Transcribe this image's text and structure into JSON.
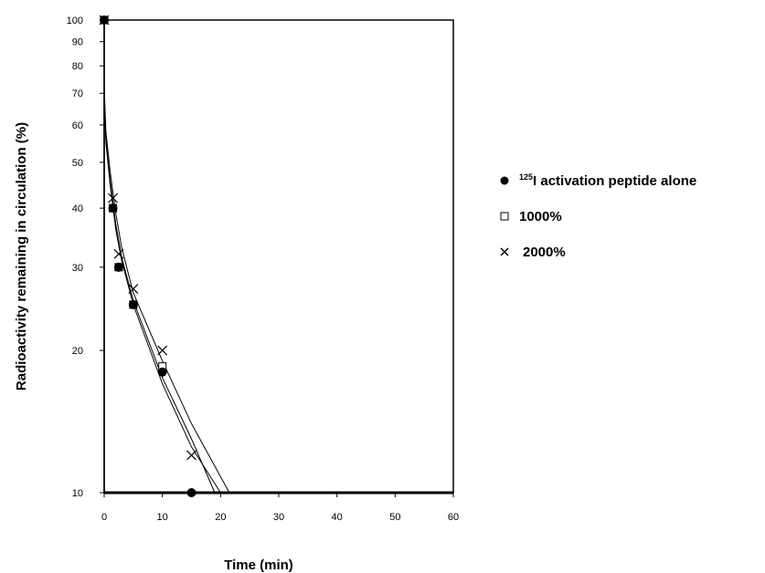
{
  "chart_data": {
    "type": "line",
    "title": "",
    "xlabel": "Time (min)",
    "ylabel": "Radioactivity remaining in circulation (%)",
    "xlim": [
      0,
      60
    ],
    "ylim": [
      10,
      100
    ],
    "y_scale": "log",
    "x_ticks": [
      0,
      10,
      20,
      30,
      40,
      50,
      60
    ],
    "y_ticks": [
      10,
      20,
      30,
      40,
      50,
      60,
      70,
      80,
      90,
      100
    ],
    "grid": false,
    "legend_position": "right",
    "series": [
      {
        "name_sup": "125",
        "name": "I activation peptide alone",
        "marker": "filled-circle",
        "points": [
          [
            0,
            100
          ],
          [
            1.5,
            40
          ],
          [
            2.5,
            30
          ],
          [
            5,
            25
          ],
          [
            10,
            18
          ],
          [
            15,
            10
          ]
        ],
        "fit_line": [
          [
            0,
            70
          ],
          [
            0.3,
            55
          ],
          [
            1,
            45
          ],
          [
            2,
            36
          ],
          [
            3,
            31
          ],
          [
            5,
            25
          ],
          [
            10,
            17
          ],
          [
            15,
            12.5
          ],
          [
            20,
            10
          ]
        ]
      },
      {
        "name": "1000%",
        "marker": "open-square",
        "points": [
          [
            0,
            100
          ],
          [
            1.5,
            40
          ],
          [
            2.5,
            30
          ],
          [
            5,
            25
          ],
          [
            10,
            18.5
          ]
        ],
        "fit_line": [
          [
            0,
            70
          ],
          [
            0.3,
            56
          ],
          [
            1,
            46
          ],
          [
            2,
            37
          ],
          [
            3,
            31.5
          ],
          [
            5,
            25.5
          ],
          [
            10,
            17.5
          ],
          [
            15,
            13
          ],
          [
            19,
            10
          ]
        ]
      },
      {
        "name": "2000%",
        "marker": "cross",
        "points": [
          [
            0,
            100
          ],
          [
            1.5,
            42
          ],
          [
            2.5,
            32
          ],
          [
            5,
            27
          ],
          [
            10,
            20
          ],
          [
            15,
            12
          ]
        ],
        "fit_line": [
          [
            0,
            72
          ],
          [
            0.3,
            58
          ],
          [
            1,
            48
          ],
          [
            2,
            39
          ],
          [
            3,
            33
          ],
          [
            5,
            26.5
          ],
          [
            10,
            19
          ],
          [
            15,
            14
          ],
          [
            21.5,
            10
          ]
        ]
      }
    ]
  }
}
